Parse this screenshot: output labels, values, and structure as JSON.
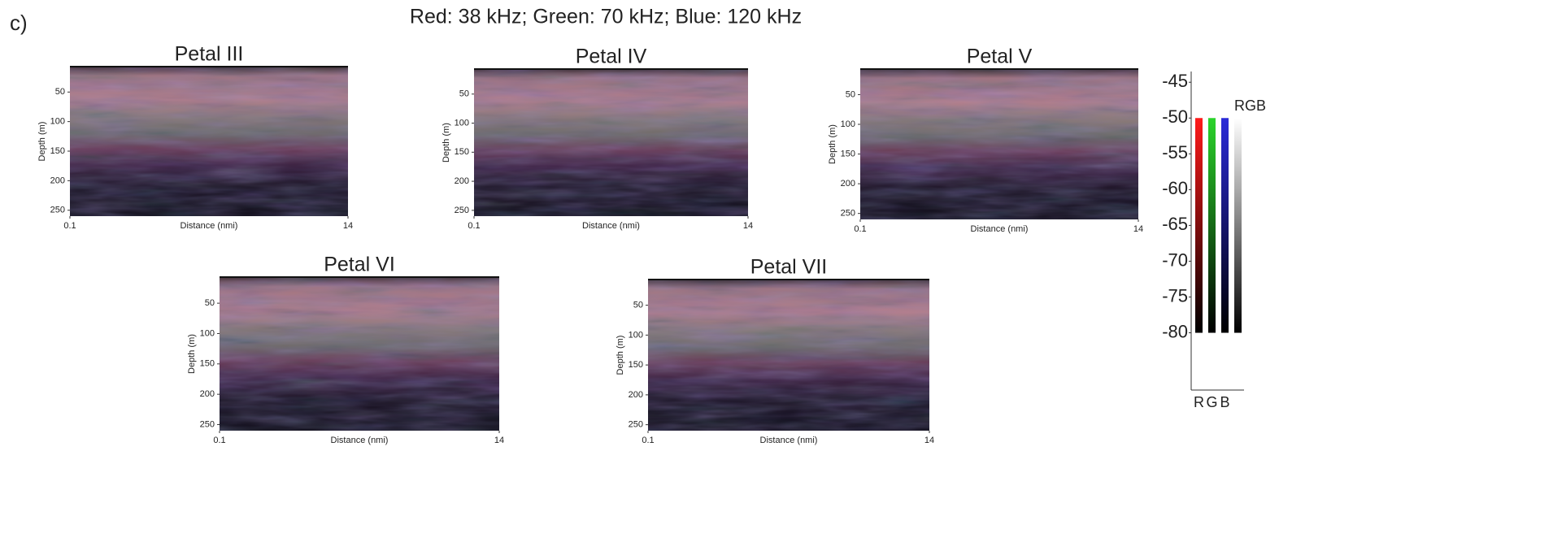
{
  "panel_label": "c)",
  "title": "Red: 38 kHz; Green: 70 kHz; Blue: 120 kHz",
  "chart_data": [
    {
      "type": "echogram",
      "title": "Petal III",
      "xlabel": "Distance (nmi)",
      "ylabel": "Depth (m)",
      "xlim": [
        0.1,
        14
      ],
      "xticks": [
        0.1,
        14
      ],
      "ylim": [
        7,
        260
      ],
      "yticks": [
        50,
        100,
        150,
        200,
        250
      ]
    },
    {
      "type": "echogram",
      "title": "Petal IV",
      "xlabel": "Distance (nmi)",
      "ylabel": "Depth (m)",
      "xlim": [
        0.1,
        14
      ],
      "xticks": [
        0.1,
        14
      ],
      "ylim": [
        7,
        260
      ],
      "yticks": [
        50,
        100,
        150,
        200,
        250
      ]
    },
    {
      "type": "echogram",
      "title": "Petal V",
      "xlabel": "Distance (nmi)",
      "ylabel": "Depth (m)",
      "xlim": [
        0.1,
        14
      ],
      "xticks": [
        0.1,
        14
      ],
      "ylim": [
        7,
        260
      ],
      "yticks": [
        50,
        100,
        150,
        200,
        250
      ]
    },
    {
      "type": "echogram",
      "title": "Petal VI",
      "xlabel": "Distance (nmi)",
      "ylabel": "Depth (m)",
      "xlim": [
        0.1,
        14
      ],
      "xticks": [
        0.1,
        14
      ],
      "ylim": [
        7,
        260
      ],
      "yticks": [
        50,
        100,
        150,
        200,
        250
      ]
    },
    {
      "type": "echogram",
      "title": "Petal VII",
      "xlabel": "Distance (nmi)",
      "ylabel": "Depth (m)",
      "xlim": [
        0.1,
        14
      ],
      "xticks": [
        0.1,
        14
      ],
      "ylim": [
        7,
        260
      ],
      "yticks": [
        50,
        100,
        150,
        200,
        250
      ]
    },
    {
      "type": "colorbar",
      "ylim": [
        -88,
        -43.5
      ],
      "yticks": [
        -45,
        -50,
        -55,
        -60,
        -65,
        -70,
        -75,
        -80
      ],
      "series": [
        {
          "name": "R",
          "color": "#ff1a1a",
          "values": [
            -50,
            -80
          ]
        },
        {
          "name": "G",
          "color": "#2bd42b",
          "values": [
            -50,
            -80
          ]
        },
        {
          "name": "B",
          "color": "#2a2ad8",
          "values": [
            -50,
            -80
          ]
        },
        {
          "name": "RGB",
          "color": "#ffffff",
          "values": [
            -50,
            -80
          ]
        }
      ]
    }
  ]
}
